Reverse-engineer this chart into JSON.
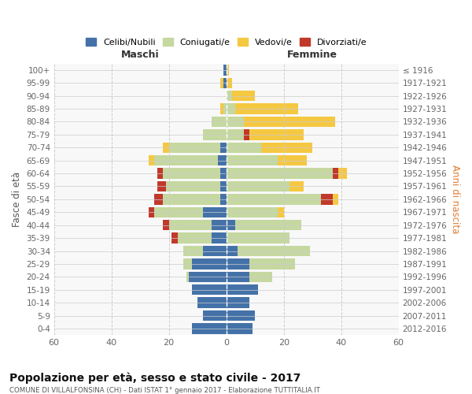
{
  "age_groups": [
    "0-4",
    "5-9",
    "10-14",
    "15-19",
    "20-24",
    "25-29",
    "30-34",
    "35-39",
    "40-44",
    "45-49",
    "50-54",
    "55-59",
    "60-64",
    "65-69",
    "70-74",
    "75-79",
    "80-84",
    "85-89",
    "90-94",
    "95-99",
    "100+"
  ],
  "birth_years": [
    "2012-2016",
    "2007-2011",
    "2002-2006",
    "1997-2001",
    "1992-1996",
    "1987-1991",
    "1982-1986",
    "1977-1981",
    "1972-1976",
    "1967-1971",
    "1962-1966",
    "1957-1961",
    "1952-1956",
    "1947-1951",
    "1942-1946",
    "1937-1941",
    "1932-1936",
    "1927-1931",
    "1922-1926",
    "1917-1921",
    "≤ 1916"
  ],
  "male": {
    "celibi": [
      12,
      8,
      10,
      12,
      13,
      12,
      8,
      5,
      5,
      8,
      2,
      2,
      2,
      3,
      2,
      0,
      0,
      0,
      0,
      1,
      1
    ],
    "coniugati": [
      0,
      0,
      0,
      0,
      1,
      3,
      7,
      12,
      15,
      17,
      20,
      19,
      20,
      22,
      18,
      8,
      5,
      1,
      0,
      0,
      0
    ],
    "vedovi": [
      0,
      0,
      0,
      0,
      0,
      0,
      0,
      0,
      0,
      0,
      0,
      0,
      0,
      2,
      2,
      0,
      0,
      1,
      0,
      1,
      0
    ],
    "divorziati": [
      0,
      0,
      0,
      0,
      0,
      0,
      0,
      2,
      2,
      2,
      3,
      3,
      2,
      0,
      0,
      0,
      0,
      0,
      0,
      0,
      0
    ]
  },
  "female": {
    "nubili": [
      9,
      10,
      8,
      11,
      8,
      8,
      4,
      0,
      3,
      0,
      0,
      0,
      0,
      0,
      0,
      0,
      0,
      0,
      0,
      0,
      0
    ],
    "coniugate": [
      0,
      0,
      0,
      0,
      8,
      16,
      25,
      22,
      23,
      18,
      33,
      22,
      37,
      18,
      12,
      6,
      6,
      3,
      2,
      0,
      0
    ],
    "vedove": [
      0,
      0,
      0,
      0,
      0,
      0,
      0,
      0,
      0,
      2,
      2,
      5,
      3,
      10,
      18,
      19,
      32,
      22,
      8,
      2,
      1
    ],
    "divorziate": [
      0,
      0,
      0,
      0,
      0,
      0,
      0,
      0,
      0,
      0,
      4,
      0,
      2,
      0,
      0,
      2,
      0,
      0,
      0,
      0,
      0
    ]
  },
  "colors": {
    "celibi": "#4472a8",
    "coniugati": "#c5d8a0",
    "vedovi": "#f5c842",
    "divorziati": "#c0392b"
  },
  "xlim": 60,
  "title": "Popolazione per età, sesso e stato civile - 2017",
  "subtitle": "COMUNE DI VILLALFONSINA (CH) - Dati ISTAT 1° gennaio 2017 - Elaborazione TUTTITALIA.IT",
  "ylabel_left": "Fasce di età",
  "ylabel_right": "Anni di nascita",
  "xlabel_left": "Maschi",
  "xlabel_right": "Femmine",
  "bg_color": "#f0f0f0",
  "plot_bg": "#f8f8f8",
  "grid_color": "#cccccc"
}
